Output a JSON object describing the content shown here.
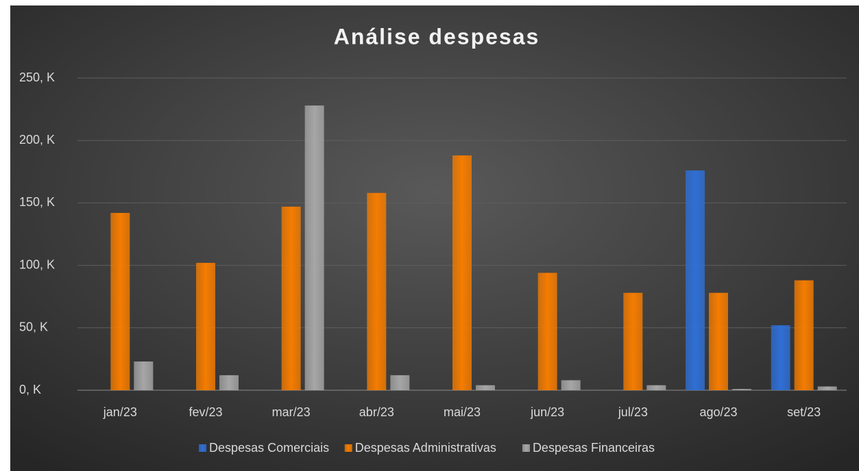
{
  "chart_data": {
    "type": "bar",
    "title": "Análise despesas",
    "categories": [
      "jan/23",
      "fev/23",
      "mar/23",
      "abr/23",
      "mai/23",
      "jun/23",
      "jul/23",
      "ago/23",
      "set/23"
    ],
    "series": [
      {
        "name": "Despesas Comerciais",
        "color": "#2f6fd6",
        "values": [
          0,
          0,
          0,
          0,
          0,
          0,
          0,
          176,
          52
        ]
      },
      {
        "name": "Despesas Administrativas",
        "color": "#f57c00",
        "values": [
          142,
          102,
          147,
          158,
          188,
          94,
          78,
          78,
          88
        ]
      },
      {
        "name": "Despesas Financeiras",
        "color": "#a6a6a6",
        "values": [
          23,
          12,
          228,
          12,
          4,
          8,
          4,
          1,
          3
        ]
      }
    ],
    "ylim": [
      0,
      250
    ],
    "yticks": [
      {
        "value": 0,
        "label": "0, K"
      },
      {
        "value": 50,
        "label": "50, K"
      },
      {
        "value": 100,
        "label": "100, K"
      },
      {
        "value": 150,
        "label": "150, K"
      },
      {
        "value": 200,
        "label": "200, K"
      },
      {
        "value": 250,
        "label": "250, K"
      }
    ],
    "grid": true,
    "legend": "bottom"
  }
}
